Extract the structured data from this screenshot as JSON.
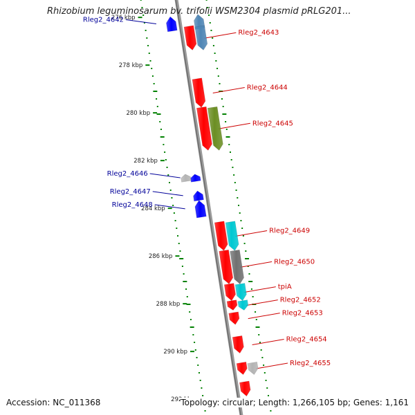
{
  "title": "Rhizobium leguminosarum bv. trifolii WSM2304 plasmid pRLG201...",
  "footer": {
    "accession": "Accession: NC_011368",
    "summary": "Topology: circular; Length: 1,266,105 bp; Genes: 1,161"
  },
  "colors": {
    "forward": "#ff0000",
    "reverse": "#0000ff",
    "steelblue": "#4f86b5",
    "olive": "#6b8e23",
    "cyan": "#00c8d2",
    "darkgray": "#707070",
    "lightgray": "#b4b4b4",
    "tick": "#008000",
    "leader_fwd": "#cc0000",
    "leader_rev": "#000099",
    "backbone": "#909090"
  },
  "scale": {
    "unit": "kbp",
    "ticks": [
      {
        "kbp": 276,
        "label": "276 kbp"
      },
      {
        "kbp": 278,
        "label": "278 kbp"
      },
      {
        "kbp": 280,
        "label": "280 kbp"
      },
      {
        "kbp": 282,
        "label": "282 kbp"
      },
      {
        "kbp": 284,
        "label": "284 kbp"
      },
      {
        "kbp": 286,
        "label": "286 kbp"
      },
      {
        "kbp": 288,
        "label": "288 kbp"
      },
      {
        "kbp": 290,
        "label": "290 kbp"
      },
      {
        "kbp": 292,
        "label": "292 kbp"
      }
    ]
  },
  "genes": [
    {
      "label": "Rleg2_4642",
      "strand": "reverse",
      "start": 276.0,
      "end": 276.6,
      "row": "outer",
      "color": "reverse",
      "labeled": true
    },
    {
      "label": "",
      "strand": "reverse",
      "start": 275.9,
      "end": 276.5,
      "row": "mid",
      "color": "steelblue",
      "labeled": false
    },
    {
      "label": "Rleg2_4643",
      "strand": "forward",
      "start": 276.4,
      "end": 277.4,
      "row": "inner",
      "color": "forward",
      "labeled": true
    },
    {
      "label": "",
      "strand": "forward",
      "start": 276.4,
      "end": 277.4,
      "row": "mid",
      "color": "steelblue",
      "labeled": false
    },
    {
      "label": "Rleg2_4644",
      "strand": "forward",
      "start": 278.6,
      "end": 279.8,
      "row": "inner",
      "color": "forward",
      "labeled": true
    },
    {
      "label": "Rleg2_4645",
      "strand": "forward",
      "start": 279.8,
      "end": 281.6,
      "row": "inner",
      "color": "forward",
      "labeled": true
    },
    {
      "label": "",
      "strand": "forward",
      "start": 279.8,
      "end": 281.6,
      "row": "mid",
      "color": "olive",
      "labeled": false
    },
    {
      "label": "Rleg2_4646",
      "strand": "reverse",
      "start": 282.6,
      "end": 282.9,
      "row": "outer",
      "color": "reverse",
      "labeled": true
    },
    {
      "label": "",
      "strand": "reverse",
      "start": 282.6,
      "end": 282.9,
      "row": "far",
      "color": "lightgray",
      "labeled": false
    },
    {
      "label": "Rleg2_4647",
      "strand": "reverse",
      "start": 283.3,
      "end": 283.7,
      "row": "outer",
      "color": "reverse",
      "labeled": true
    },
    {
      "label": "Rleg2_4648",
      "strand": "reverse",
      "start": 283.7,
      "end": 284.4,
      "row": "outer",
      "color": "reverse",
      "labeled": true
    },
    {
      "label": "Rleg2_4649",
      "strand": "forward",
      "start": 284.6,
      "end": 285.8,
      "row": "inner",
      "color": "forward",
      "labeled": true
    },
    {
      "label": "",
      "strand": "forward",
      "start": 284.6,
      "end": 285.8,
      "row": "mid",
      "color": "cyan",
      "labeled": false
    },
    {
      "label": "Rleg2_4650",
      "strand": "forward",
      "start": 285.8,
      "end": 287.2,
      "row": "inner",
      "color": "forward",
      "labeled": true
    },
    {
      "label": "",
      "strand": "forward",
      "start": 285.8,
      "end": 287.2,
      "row": "mid",
      "color": "darkgray",
      "labeled": false
    },
    {
      "label": "tpiA",
      "strand": "forward",
      "start": 287.2,
      "end": 287.9,
      "row": "inner",
      "color": "forward",
      "labeled": true
    },
    {
      "label": "",
      "strand": "forward",
      "start": 287.2,
      "end": 287.9,
      "row": "mid",
      "color": "cyan",
      "labeled": false
    },
    {
      "label": "Rleg2_4652",
      "strand": "forward",
      "start": 287.9,
      "end": 288.3,
      "row": "inner",
      "color": "forward",
      "labeled": true
    },
    {
      "label": "",
      "strand": "forward",
      "start": 287.9,
      "end": 288.3,
      "row": "mid",
      "color": "cyan",
      "labeled": false
    },
    {
      "label": "Rleg2_4653",
      "strand": "forward",
      "start": 288.4,
      "end": 288.9,
      "row": "inner",
      "color": "forward",
      "labeled": true
    },
    {
      "label": "Rleg2_4654",
      "strand": "forward",
      "start": 289.4,
      "end": 290.1,
      "row": "inner",
      "color": "forward",
      "labeled": true
    },
    {
      "label": "Rleg2_4655",
      "strand": "forward",
      "start": 290.5,
      "end": 291.0,
      "row": "inner",
      "color": "forward",
      "labeled": true
    },
    {
      "label": "",
      "strand": "forward",
      "start": 290.5,
      "end": 291.0,
      "row": "mid",
      "color": "lightgray",
      "labeled": false
    },
    {
      "label": "",
      "strand": "forward",
      "start": 291.3,
      "end": 291.9,
      "row": "inner",
      "color": "forward",
      "labeled": false
    }
  ]
}
